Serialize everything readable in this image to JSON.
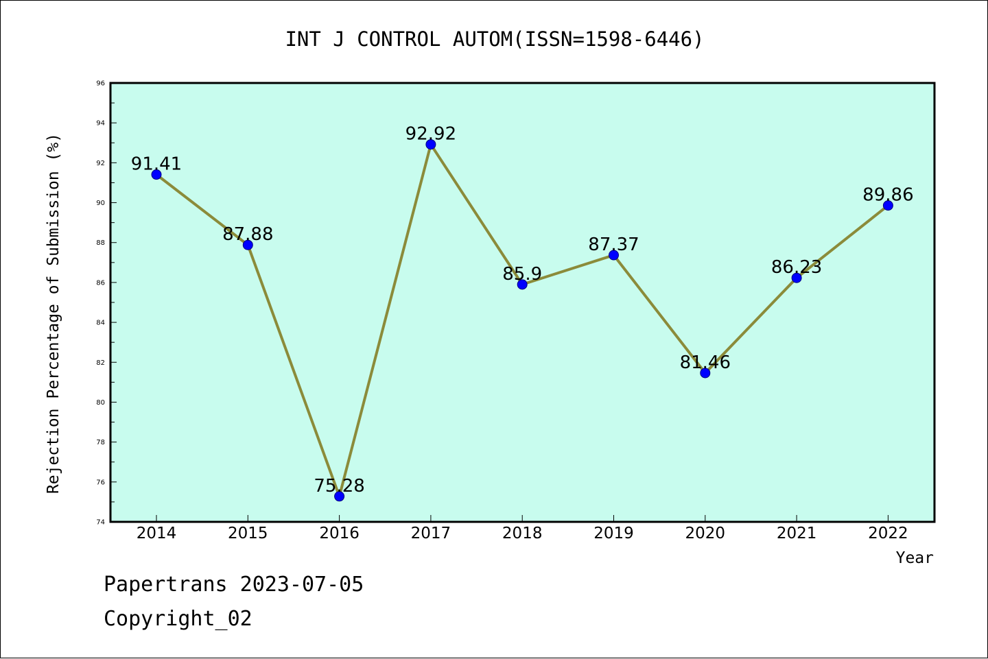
{
  "chart_data": {
    "type": "line",
    "title": "INT J CONTROL AUTOM(ISSN=1598-6446)",
    "xlabel": "Year",
    "ylabel": "Rejection Percentage of Submission (%)",
    "categories": [
      "2014",
      "2015",
      "2016",
      "2017",
      "2018",
      "2019",
      "2020",
      "2021",
      "2022"
    ],
    "series": [
      {
        "values": [
          91.41,
          87.88,
          75.28,
          92.92,
          85.9,
          87.37,
          81.46,
          86.23,
          89.86
        ],
        "labels": [
          "91.41",
          "87.88",
          "75.28",
          "92.92",
          "85.9",
          "87.37",
          "81.46",
          "86.23",
          "89.86"
        ]
      }
    ],
    "ylim": [
      74,
      96
    ],
    "yticks": [
      "74",
      "76",
      "78",
      "80",
      "82",
      "84",
      "86",
      "88",
      "90",
      "92",
      "94",
      "96"
    ],
    "grid": false,
    "legend": "none",
    "colors": {
      "plot_background": "#c8fcee",
      "line": "#8b8b3a",
      "marker": "#0000ff",
      "axes": "#000000"
    }
  },
  "footer": {
    "line1": "Papertrans 2023-07-05",
    "line2": "Copyright_02"
  }
}
